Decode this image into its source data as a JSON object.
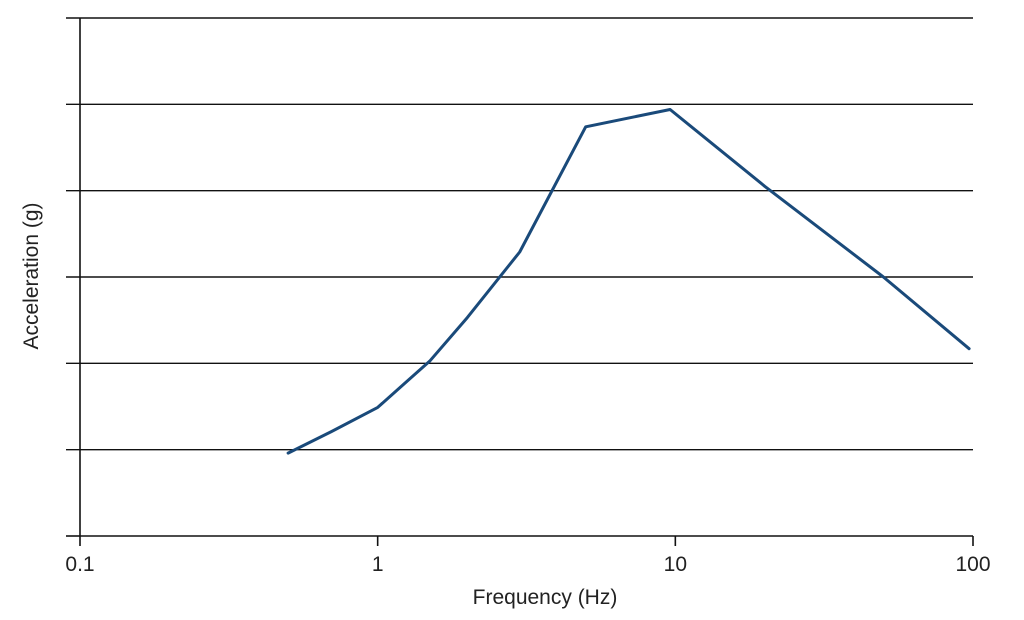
{
  "chart_data": {
    "type": "line",
    "title": "",
    "xlabel": "Frequency (Hz)",
    "ylabel": "Acceleration (g)",
    "x_scale": "log",
    "xlim": [
      0.1,
      100
    ],
    "x_ticks": [
      0.1,
      1,
      10,
      100
    ],
    "x_tick_labels": [
      "0.1",
      "1",
      "10",
      "100"
    ],
    "ylim": [
      0,
      6
    ],
    "y_ticks": [
      0,
      1,
      2,
      3,
      4,
      5,
      6
    ],
    "y_tick_labels_shown": false,
    "grid": "horizontal",
    "legend": "none",
    "series": [
      {
        "color": "#1a4a7a",
        "points": [
          {
            "x": 0.5,
            "y": 0.96
          },
          {
            "x": 0.7,
            "y": 1.21
          },
          {
            "x": 1.0,
            "y": 1.49
          },
          {
            "x": 1.5,
            "y": 2.03
          },
          {
            "x": 2.0,
            "y": 2.53
          },
          {
            "x": 3.0,
            "y": 3.29
          },
          {
            "x": 5.0,
            "y": 4.74
          },
          {
            "x": 9.6,
            "y": 4.94
          },
          {
            "x": 20.0,
            "y": 4.05
          },
          {
            "x": 50.0,
            "y": 3.0
          },
          {
            "x": 97.0,
            "y": 2.17
          }
        ]
      }
    ]
  },
  "colors": {
    "line": "#1a4a7a",
    "axis": "#111111",
    "grid": "#111111",
    "text": "#222222"
  }
}
